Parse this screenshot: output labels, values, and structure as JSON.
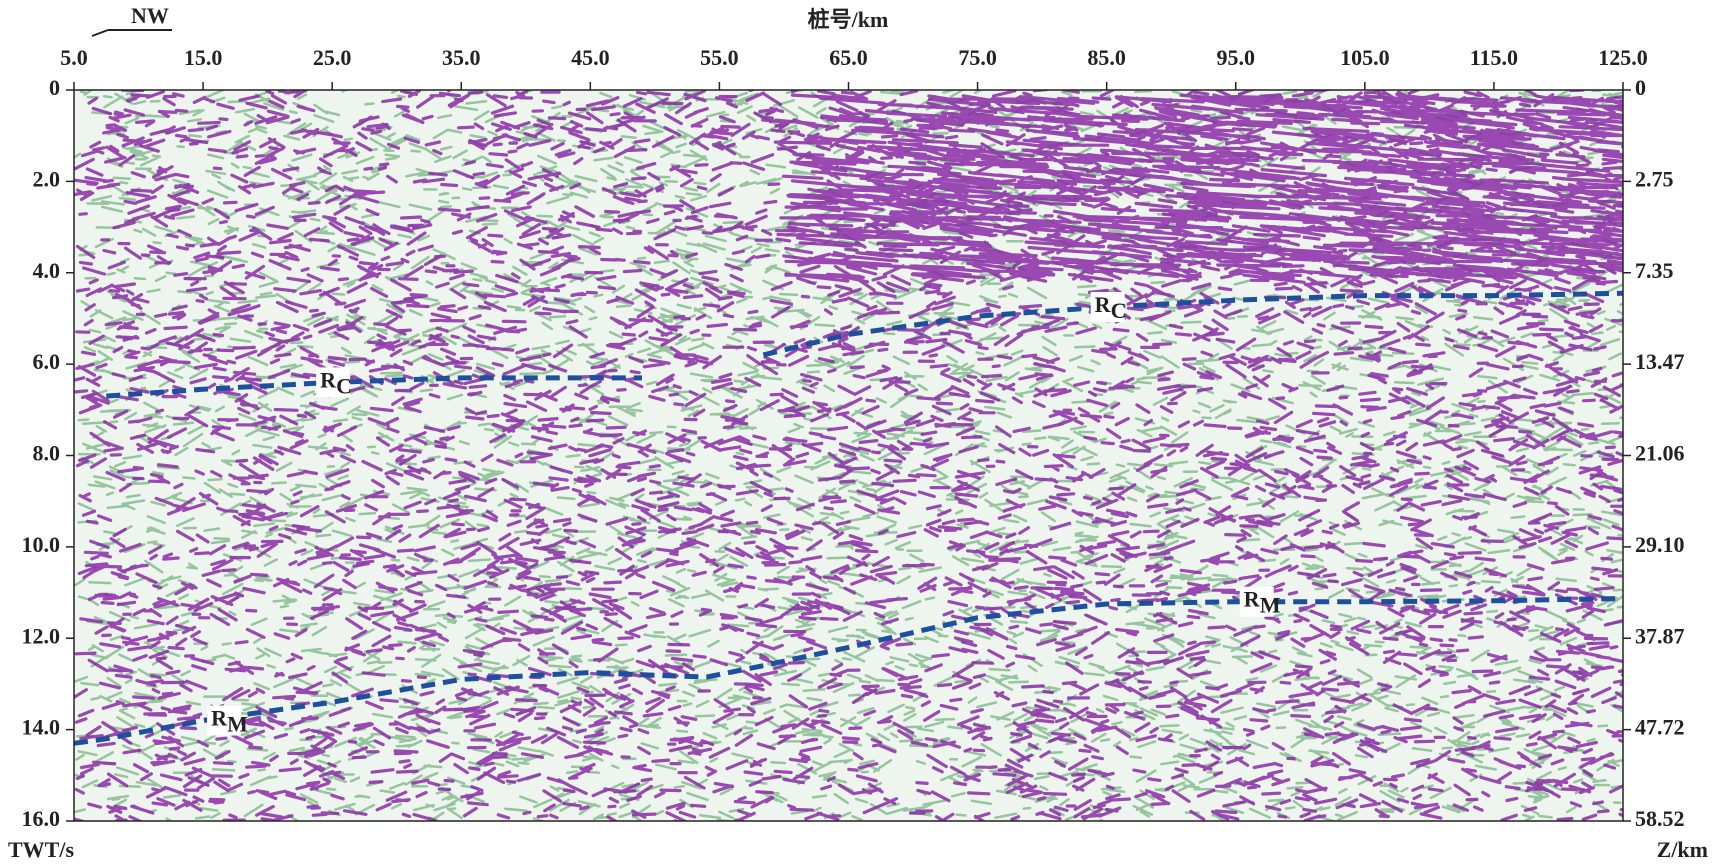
{
  "chart_data": {
    "type": "line",
    "title": "桩号/km",
    "direction_label": "NW",
    "ylabel": "TWT/s",
    "y2label": "Z/km",
    "x": [
      5,
      7.5,
      15,
      25,
      35,
      45,
      49,
      54,
      58.4,
      65,
      75,
      85,
      95,
      105,
      115,
      125
    ],
    "xlim": [
      5,
      125
    ],
    "xticks": [
      {
        "value": 5,
        "label": "5.0"
      },
      {
        "value": 15,
        "label": "15.0"
      },
      {
        "value": 25,
        "label": "25.0"
      },
      {
        "value": 35,
        "label": "35.0"
      },
      {
        "value": 45,
        "label": "45.0"
      },
      {
        "value": 55,
        "label": "55.0"
      },
      {
        "value": 65,
        "label": "65.0"
      },
      {
        "value": 75,
        "label": "75.0"
      },
      {
        "value": 85,
        "label": "85.0"
      },
      {
        "value": 95,
        "label": "95.0"
      },
      {
        "value": 105,
        "label": "105.0"
      },
      {
        "value": 115,
        "label": "115.0"
      },
      {
        "value": 125,
        "label": "125.0"
      }
    ],
    "ylim": [
      0,
      16
    ],
    "yticks": [
      0,
      {
        "value": 2,
        "label": "2.0"
      },
      {
        "value": 4,
        "label": "4.0"
      },
      {
        "value": 6,
        "label": "6.0"
      },
      {
        "value": 8,
        "label": "8.0"
      },
      {
        "value": 10,
        "label": "10.0"
      },
      {
        "value": 12,
        "label": "12.0"
      },
      {
        "value": 14,
        "label": "14.0"
      },
      {
        "value": 16,
        "label": "16.0"
      }
    ],
    "y2ticks": [
      0,
      2.75,
      7.35,
      13.47,
      21.06,
      {
        "value": 29.1,
        "label": "29.10"
      },
      37.87,
      47.72,
      58.52
    ],
    "series": [
      {
        "label": "R",
        "label_sub": "C",
        "color": "#1d4f9e",
        "values": [
          null,
          6.7,
          6.55,
          6.4,
          6.3,
          6.3,
          6.3,
          null,
          5.8,
          5.35,
          4.95,
          4.75,
          4.6,
          4.5,
          4.5,
          4.45
        ]
      },
      {
        "label": "R",
        "label_sub": "M",
        "color": "#1d4f9e",
        "values": [
          14.3,
          14.2,
          13.8,
          13.4,
          12.9,
          12.75,
          12.8,
          12.85,
          12.6,
          12.2,
          11.55,
          11.25,
          11.2,
          11.2,
          11.18,
          11.13
        ]
      }
    ]
  }
}
